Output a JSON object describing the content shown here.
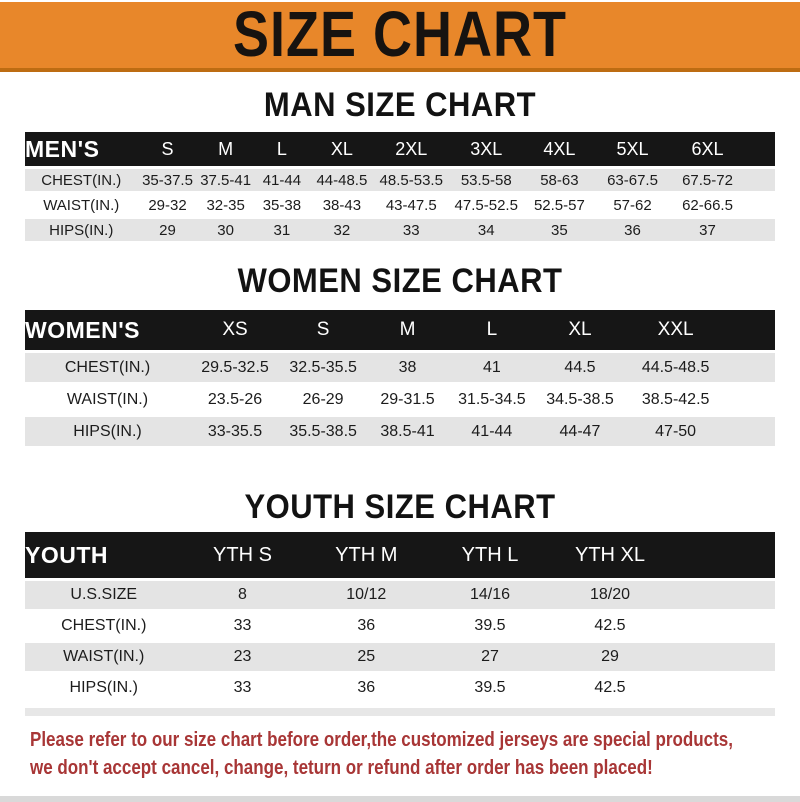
{
  "banner": {
    "title": "SIZE CHART"
  },
  "sections": [
    {
      "id": "men",
      "heading": "MAN SIZE CHART",
      "header_label": "MEN'S",
      "columns": [
        "S",
        "M",
        "L",
        "XL",
        "2XL",
        "3XL",
        "4XL",
        "5XL",
        "6XL"
      ],
      "rows": [
        {
          "label": "CHEST(IN.)",
          "values": [
            "35-37.5",
            "37.5-41",
            "41-44",
            "44-48.5",
            "48.5-53.5",
            "53.5-58",
            "58-63",
            "63-67.5",
            "67.5-72"
          ]
        },
        {
          "label": "WAIST(IN.)",
          "values": [
            "29-32",
            "32-35",
            "35-38",
            "38-43",
            "43-47.5",
            "47.5-52.5",
            "52.5-57",
            "57-62",
            "62-66.5"
          ]
        },
        {
          "label": "HIPS(IN.)",
          "values": [
            "29",
            "30",
            "31",
            "32",
            "33",
            "34",
            "35",
            "36",
            "37"
          ]
        }
      ]
    },
    {
      "id": "women",
      "heading": "WOMEN SIZE CHART",
      "header_label": "WOMEN'S",
      "columns": [
        "XS",
        "S",
        "M",
        "L",
        "XL",
        "XXL"
      ],
      "rows": [
        {
          "label": "CHEST(IN.)",
          "values": [
            "29.5-32.5",
            "32.5-35.5",
            "38",
            "41",
            "44.5",
            "44.5-48.5"
          ]
        },
        {
          "label": "WAIST(IN.)",
          "values": [
            "23.5-26",
            "26-29",
            "29-31.5",
            "31.5-34.5",
            "34.5-38.5",
            "38.5-42.5"
          ]
        },
        {
          "label": "HIPS(IN.)",
          "values": [
            "33-35.5",
            "35.5-38.5",
            "38.5-41",
            "41-44",
            "44-47",
            "47-50"
          ]
        }
      ]
    },
    {
      "id": "youth",
      "heading": "YOUTH SIZE CHART",
      "header_label": "YOUTH",
      "columns": [
        "YTH S",
        "YTH M",
        "YTH L",
        "YTH XL"
      ],
      "rows": [
        {
          "label": "U.S.SIZE",
          "values": [
            "8",
            "10/12",
            "14/16",
            "18/20"
          ]
        },
        {
          "label": "CHEST(IN.)",
          "values": [
            "33",
            "36",
            "39.5",
            "42.5"
          ]
        },
        {
          "label": "WAIST(IN.)",
          "values": [
            "23",
            "25",
            "27",
            "29"
          ]
        },
        {
          "label": "HIPS(IN.)",
          "values": [
            "33",
            "36",
            "39.5",
            "42.5"
          ]
        }
      ]
    }
  ],
  "footer": {
    "line1": "Please refer to our size chart before order,the customized jerseys are special products,",
    "line2": "we don't accept cancel, change, teturn or refund after order has been placed!"
  },
  "colors": {
    "banner_orange": "#E8872A",
    "banner_edge": "#BD6C12",
    "bar_black": "#161616",
    "row_gray": "#E4E4E4",
    "row_white": "#FFFFFF",
    "footer_red": "#A83636",
    "strip_gray": "#E7E7E7"
  }
}
